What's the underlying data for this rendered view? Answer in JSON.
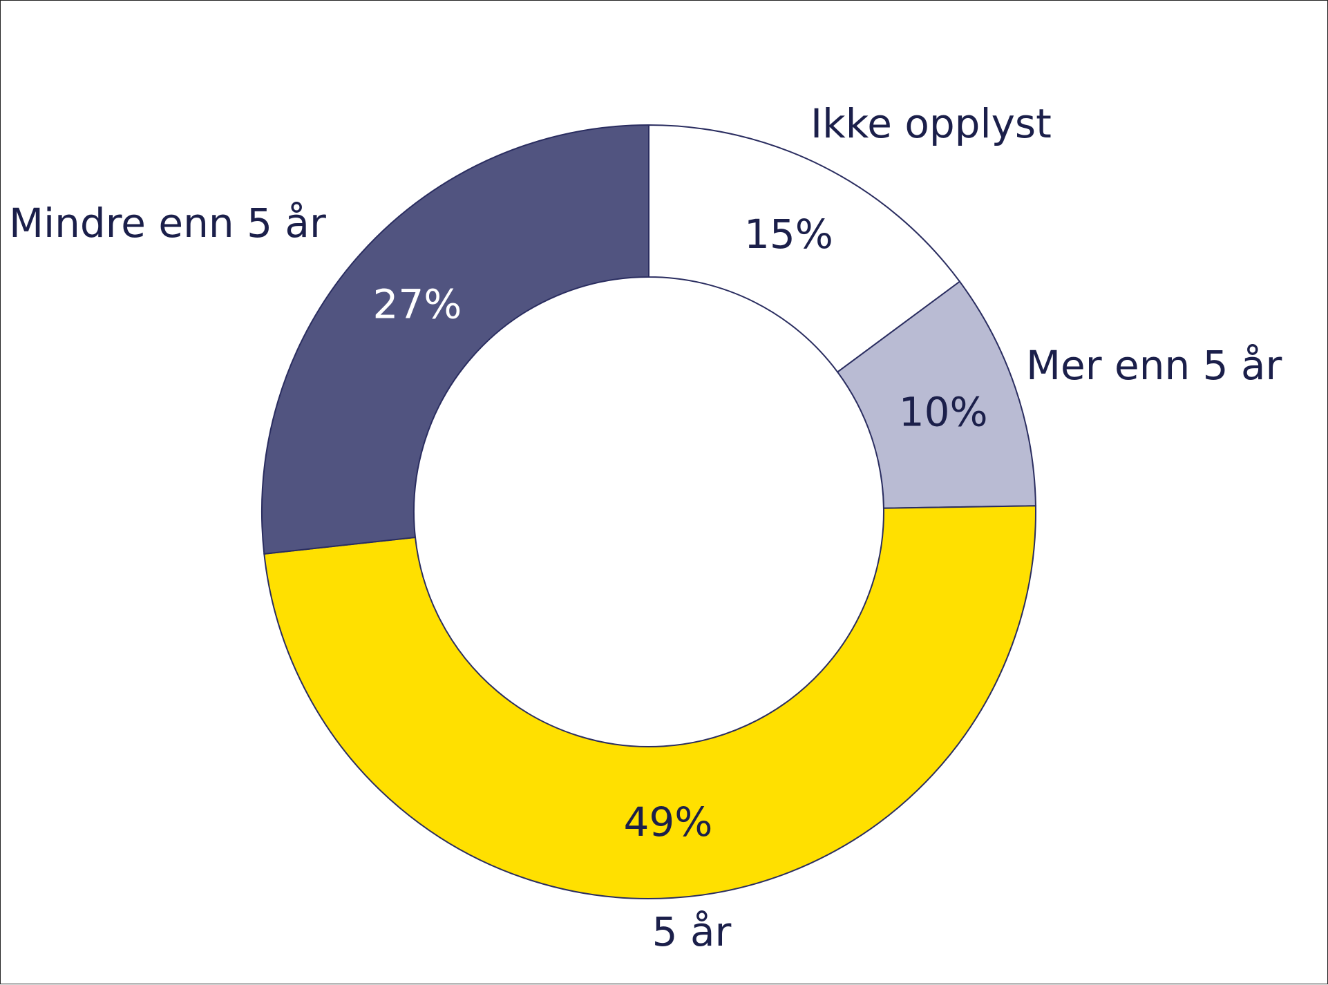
{
  "chart_data": {
    "type": "pie",
    "variant": "donut",
    "title": "",
    "legend": "none",
    "slices": [
      {
        "label": "Ikke opplyst",
        "value": 15,
        "value_label": "15%",
        "color": "#ffffff",
        "text_color": "#1b1f4a"
      },
      {
        "label": "Mer enn 5 år",
        "value": 10,
        "value_label": "10%",
        "color": "#b9bbd3",
        "text_color": "#1b1f4a"
      },
      {
        "label": "5 år",
        "value": 49,
        "value_label": "49%",
        "color": "#ffe000",
        "text_color": "#1b1f4a"
      },
      {
        "label": "Mindre enn 5 år",
        "value": 27,
        "value_label": "27%",
        "color": "#515480",
        "text_color": "#ffffff"
      }
    ],
    "start_angle_deg": 0,
    "direction": "clockwise",
    "edge_color": "#2a2d60"
  }
}
